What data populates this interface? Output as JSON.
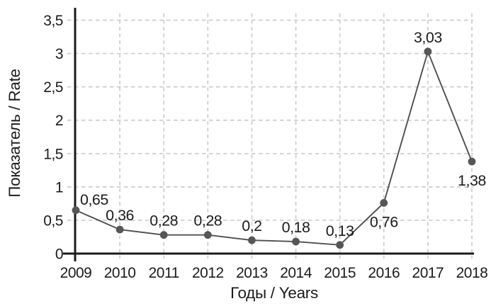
{
  "chart_data": {
    "type": "line",
    "title": "",
    "xlabel": "Годы / Years",
    "ylabel": "Показатель / Rate",
    "categories": [
      "2009",
      "2010",
      "2011",
      "2012",
      "2013",
      "2014",
      "2015",
      "2016",
      "2017",
      "2018"
    ],
    "values": [
      0.65,
      0.36,
      0.28,
      0.28,
      0.2,
      0.18,
      0.13,
      0.76,
      3.03,
      1.38
    ],
    "point_labels": [
      "0,65",
      "0,36",
      "0,28",
      "0,28",
      "0,2",
      "0,18",
      "0,13",
      "0,76",
      "3,03",
      "1,38"
    ],
    "point_label_positions": [
      "right",
      "above",
      "above",
      "above",
      "above",
      "above",
      "above",
      "below",
      "above",
      "below"
    ],
    "ylim": [
      0,
      3.5
    ],
    "y_ticks": [
      0,
      0.5,
      1,
      1.5,
      2,
      2.5,
      3,
      3.5
    ],
    "y_tick_labels": [
      "0",
      "0,5",
      "1",
      "1,5",
      "2",
      "2,5",
      "3",
      "3,5"
    ],
    "grid": "dashed, horizontal and vertical, light gray",
    "legend": "none",
    "colors": {
      "line": "#4f4f4f",
      "marker": "#565656",
      "grid": "#cccccc",
      "axis": "#1b1b1b",
      "text": "#1c1c1c",
      "background": "#ffffff"
    }
  }
}
